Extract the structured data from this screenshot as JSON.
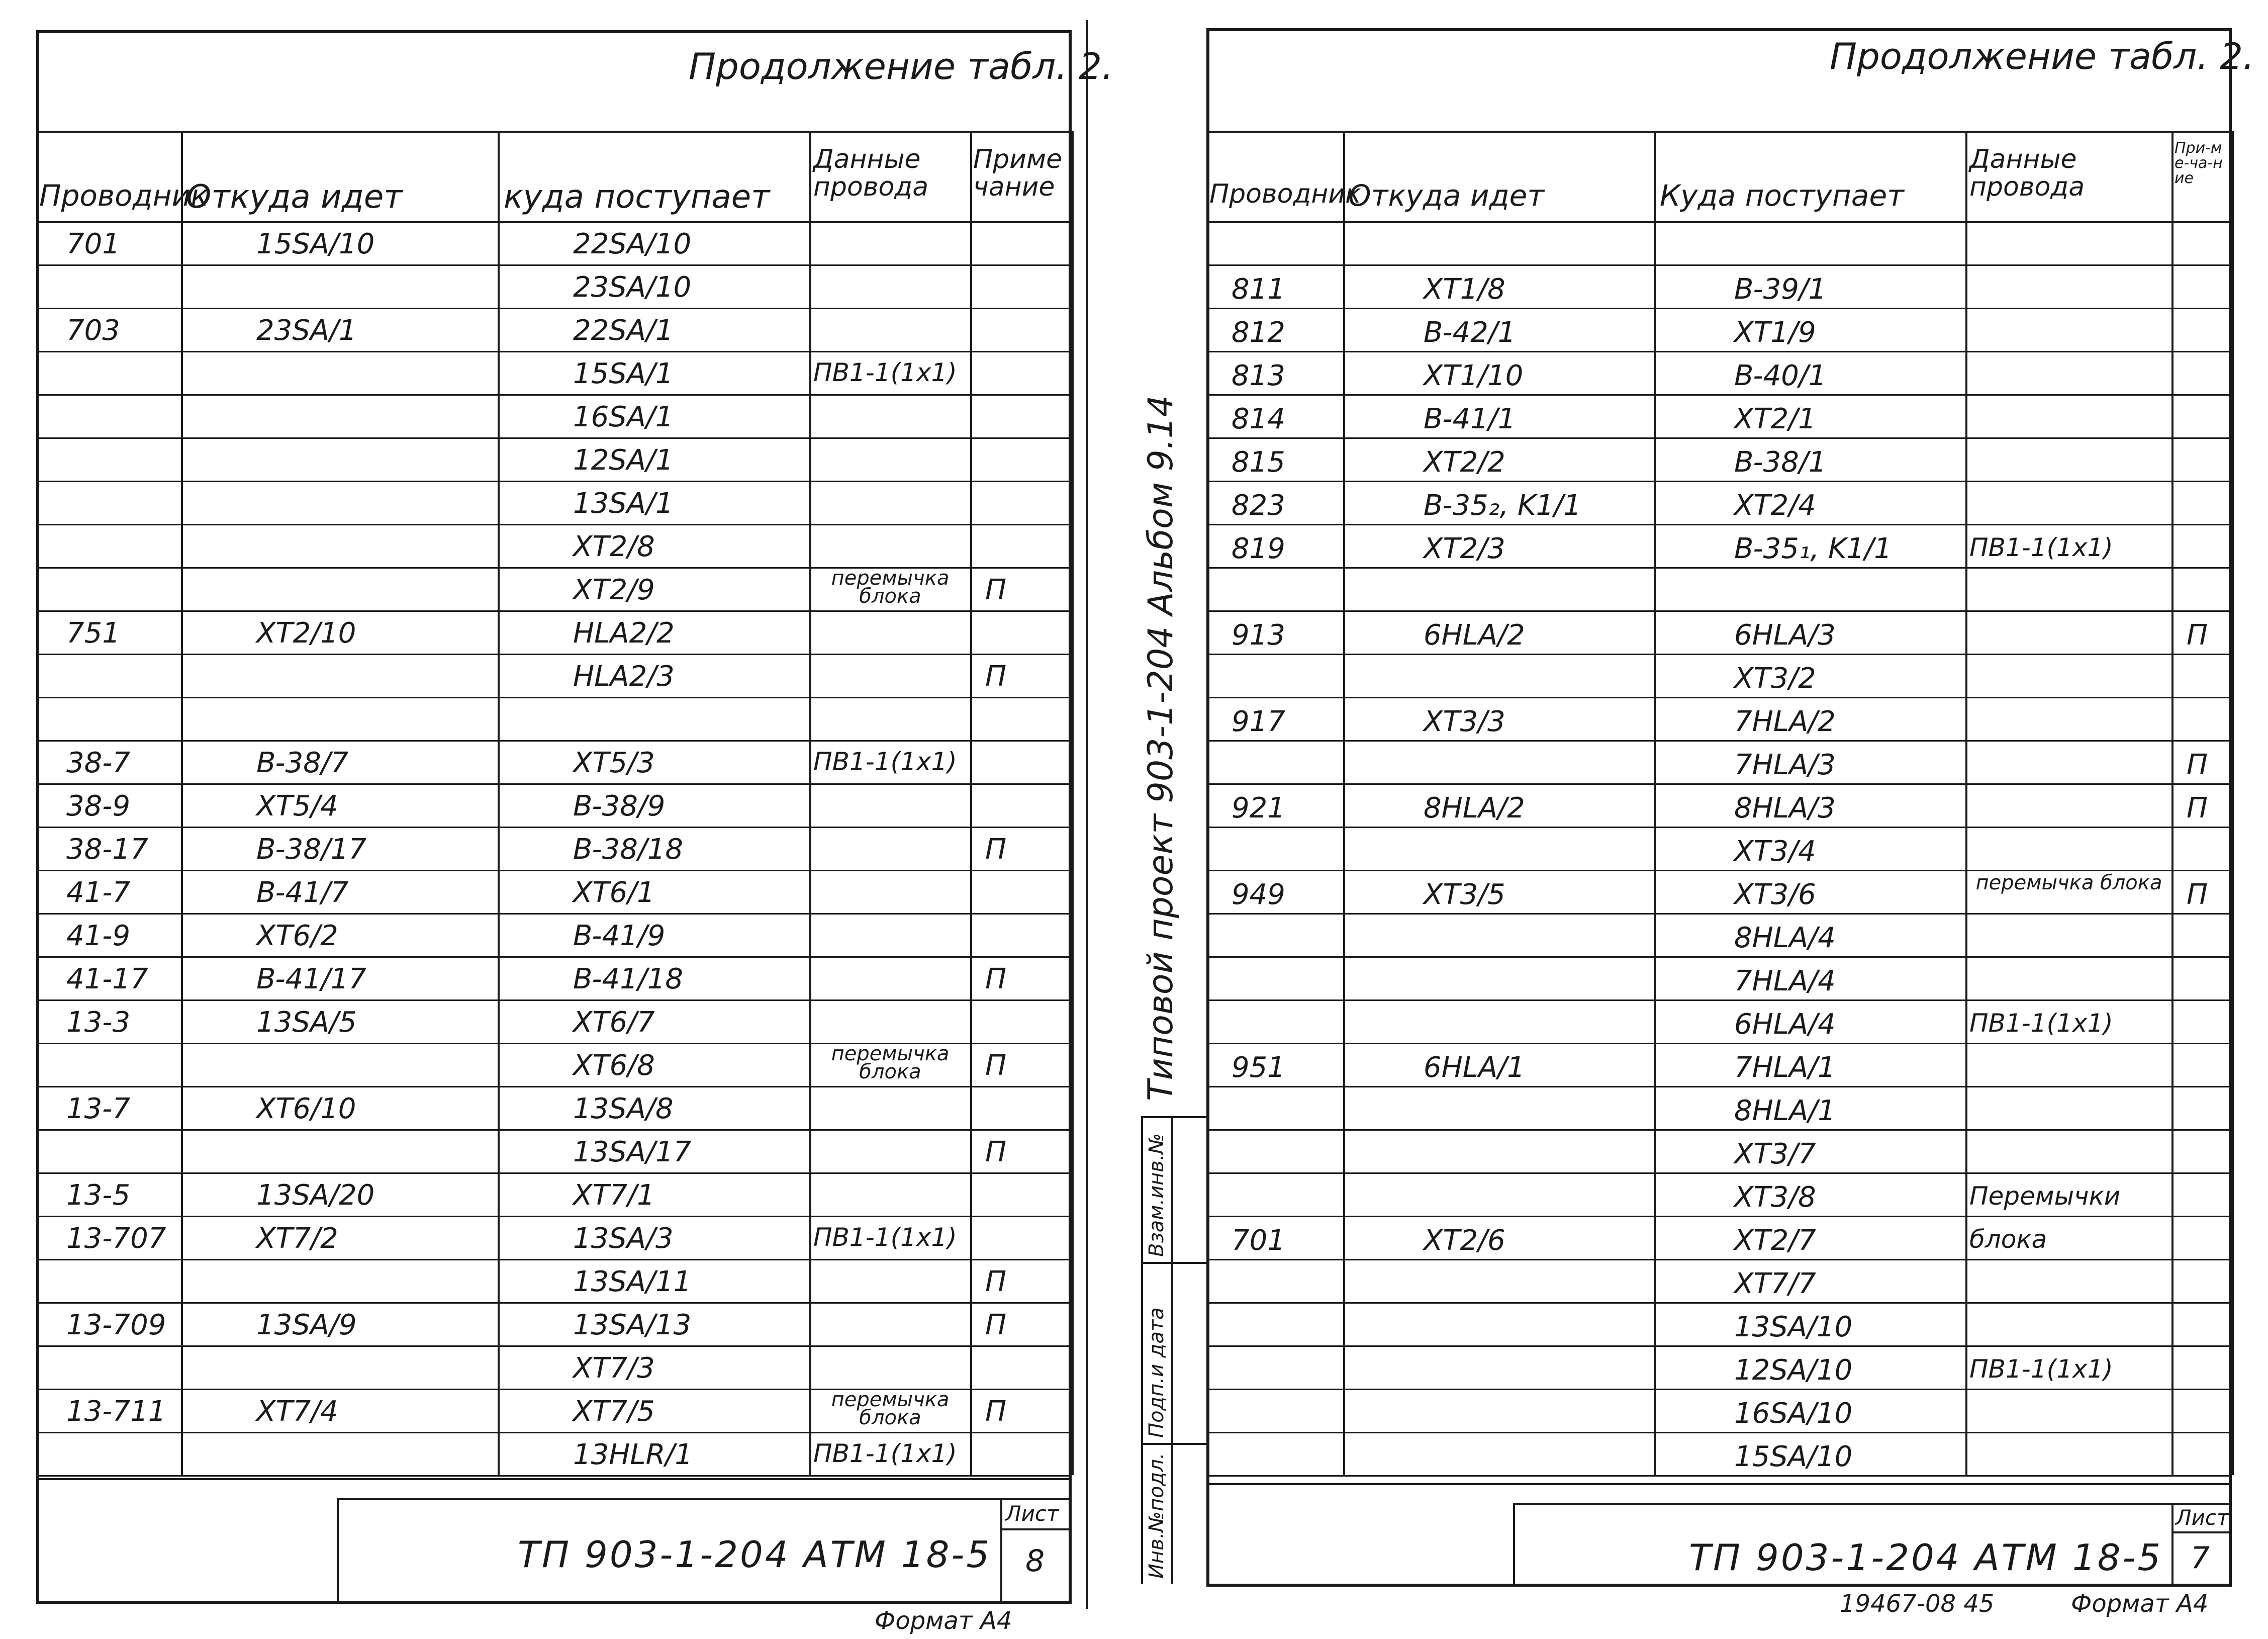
{
  "left": {
    "title": "Продолжение табл. 2.",
    "headers": {
      "conductor": "Проводник",
      "from": "Откуда идет",
      "to": "куда поступает",
      "wire": "Данные провода",
      "note": "Приме чание"
    },
    "rows": [
      {
        "c": "701",
        "f": "15SA/10",
        "t": "22SA/10",
        "w": "",
        "n": ""
      },
      {
        "c": "",
        "f": "",
        "t": "23SA/10",
        "w": "",
        "n": ""
      },
      {
        "c": "703",
        "f": "23SA/1",
        "t": "22SA/1",
        "w": "",
        "n": ""
      },
      {
        "c": "",
        "f": "",
        "t": "15SA/1",
        "w": "ПВ1-1(1х1)",
        "n": ""
      },
      {
        "c": "",
        "f": "",
        "t": "16SA/1",
        "w": "",
        "n": ""
      },
      {
        "c": "",
        "f": "",
        "t": "12SA/1",
        "w": "",
        "n": ""
      },
      {
        "c": "",
        "f": "",
        "t": "13SA/1",
        "w": "",
        "n": ""
      },
      {
        "c": "",
        "f": "",
        "t": "XT2/8",
        "w": "",
        "n": ""
      },
      {
        "c": "",
        "f": "",
        "t": "XT2/9",
        "w": "перемычка блока",
        "n": "П"
      },
      {
        "c": "751",
        "f": "XT2/10",
        "t": "HLA2/2",
        "w": "",
        "n": ""
      },
      {
        "c": "",
        "f": "",
        "t": "HLA2/3",
        "w": "",
        "n": "П"
      },
      {
        "c": "",
        "f": "",
        "t": "",
        "w": "",
        "n": ""
      },
      {
        "c": "38-7",
        "f": "B-38/7",
        "t": "XT5/3",
        "w": "ПВ1-1(1х1)",
        "n": ""
      },
      {
        "c": "38-9",
        "f": "XT5/4",
        "t": "B-38/9",
        "w": "",
        "n": ""
      },
      {
        "c": "38-17",
        "f": "B-38/17",
        "t": "B-38/18",
        "w": "",
        "n": "П"
      },
      {
        "c": "41-7",
        "f": "B-41/7",
        "t": "XT6/1",
        "w": "",
        "n": ""
      },
      {
        "c": "41-9",
        "f": "XT6/2",
        "t": "B-41/9",
        "w": "",
        "n": ""
      },
      {
        "c": "41-17",
        "f": "B-41/17",
        "t": "B-41/18",
        "w": "",
        "n": "П"
      },
      {
        "c": "13-3",
        "f": "13SA/5",
        "t": "XT6/7",
        "w": "",
        "n": ""
      },
      {
        "c": "",
        "f": "",
        "t": "XT6/8",
        "w": "перемычка блока",
        "n": "П"
      },
      {
        "c": "13-7",
        "f": "XT6/10",
        "t": "13SA/8",
        "w": "",
        "n": ""
      },
      {
        "c": "",
        "f": "",
        "t": "13SA/17",
        "w": "",
        "n": "П"
      },
      {
        "c": "13-5",
        "f": "13SA/20",
        "t": "XT7/1",
        "w": "",
        "n": ""
      },
      {
        "c": "13-707",
        "f": "XT7/2",
        "t": "13SA/3",
        "w": "ПВ1-1(1х1)",
        "n": ""
      },
      {
        "c": "",
        "f": "",
        "t": "13SA/11",
        "w": "",
        "n": "П"
      },
      {
        "c": "13-709",
        "f": "13SA/9",
        "t": "13SA/13",
        "w": "",
        "n": "П"
      },
      {
        "c": "",
        "f": "",
        "t": "XT7/3",
        "w": "",
        "n": ""
      },
      {
        "c": "13-711",
        "f": "XT7/4",
        "t": "XT7/5",
        "w": "перемычка блока",
        "n": "П"
      },
      {
        "c": "",
        "f": "",
        "t": "13HLR/1",
        "w": "ПВ1-1(1х1)",
        "n": ""
      }
    ],
    "stamp": "ТП 903-1-204   АТМ 18-5",
    "sheet_label": "Лист",
    "sheet_no": "8",
    "format": "Формат А4"
  },
  "right": {
    "title": "Продолжение табл. 2.",
    "headers": {
      "conductor": "Проводник",
      "from": "Откуда идет",
      "to": "Куда поступает",
      "wire": "Данные провода",
      "note": "При-ме-ча-ние"
    },
    "rows": [
      {
        "c": "",
        "f": "",
        "t": "",
        "w": "",
        "n": ""
      },
      {
        "c": "811",
        "f": "XT1/8",
        "t": "B-39/1",
        "w": "",
        "n": ""
      },
      {
        "c": "812",
        "f": "B-42/1",
        "t": "XT1/9",
        "w": "",
        "n": ""
      },
      {
        "c": "813",
        "f": "XT1/10",
        "t": "B-40/1",
        "w": "",
        "n": ""
      },
      {
        "c": "814",
        "f": "B-41/1",
        "t": "XT2/1",
        "w": "",
        "n": ""
      },
      {
        "c": "815",
        "f": "XT2/2",
        "t": "B-38/1",
        "w": "",
        "n": ""
      },
      {
        "c": "823",
        "f": "B-35₂, K1/1",
        "t": "XT2/4",
        "w": "",
        "n": ""
      },
      {
        "c": "819",
        "f": "XT2/3",
        "t": "B-35₁, K1/1",
        "w": "ПВ1-1(1х1)",
        "n": ""
      },
      {
        "c": "",
        "f": "",
        "t": "",
        "w": "",
        "n": ""
      },
      {
        "c": "913",
        "f": "6HLA/2",
        "t": "6HLA/3",
        "w": "",
        "n": "П"
      },
      {
        "c": "",
        "f": "",
        "t": "XT3/2",
        "w": "",
        "n": ""
      },
      {
        "c": "917",
        "f": "XT3/3",
        "t": "7HLA/2",
        "w": "",
        "n": ""
      },
      {
        "c": "",
        "f": "",
        "t": "7HLA/3",
        "w": "",
        "n": "П"
      },
      {
        "c": "921",
        "f": "8HLA/2",
        "t": "8HLA/3",
        "w": "",
        "n": "П"
      },
      {
        "c": "",
        "f": "",
        "t": "XT3/4",
        "w": "",
        "n": ""
      },
      {
        "c": "949",
        "f": "XT3/5",
        "t": "XT3/6",
        "w": "перемычка блока",
        "n": "П"
      },
      {
        "c": "",
        "f": "",
        "t": "8HLA/4",
        "w": "",
        "n": ""
      },
      {
        "c": "",
        "f": "",
        "t": "7HLA/4",
        "w": "",
        "n": ""
      },
      {
        "c": "",
        "f": "",
        "t": "6HLA/4",
        "w": "ПВ1-1(1х1)",
        "n": ""
      },
      {
        "c": "951",
        "f": "6HLA/1",
        "t": "7HLA/1",
        "w": "",
        "n": ""
      },
      {
        "c": "",
        "f": "",
        "t": "8HLA/1",
        "w": "",
        "n": ""
      },
      {
        "c": "",
        "f": "",
        "t": "XT3/7",
        "w": "",
        "n": ""
      },
      {
        "c": "",
        "f": "",
        "t": "XT3/8",
        "w": "Перемычки",
        "n": ""
      },
      {
        "c": "701",
        "f": "XT2/6",
        "t": "XT2/7",
        "w": "блока",
        "n": ""
      },
      {
        "c": "",
        "f": "",
        "t": "XT7/7",
        "w": "",
        "n": ""
      },
      {
        "c": "",
        "f": "",
        "t": "13SA/10",
        "w": "",
        "n": ""
      },
      {
        "c": "",
        "f": "",
        "t": "12SA/10",
        "w": "ПВ1-1(1х1)",
        "n": ""
      },
      {
        "c": "",
        "f": "",
        "t": "16SA/10",
        "w": "",
        "n": ""
      },
      {
        "c": "",
        "f": "",
        "t": "15SA/10",
        "w": "",
        "n": ""
      }
    ],
    "stamp": "ТП 903-1-204   АТМ 18-5",
    "sheet_label": "Лист",
    "sheet_no": "7",
    "footer_code": "19467-08   45",
    "format": "Формат А4"
  },
  "margin": {
    "album": "Типовой проект 903-1-204   Альбом 9.14",
    "stamp_cells": [
      "Взам.инв.№",
      "Подп.и дата",
      "Инв.№подл."
    ]
  }
}
